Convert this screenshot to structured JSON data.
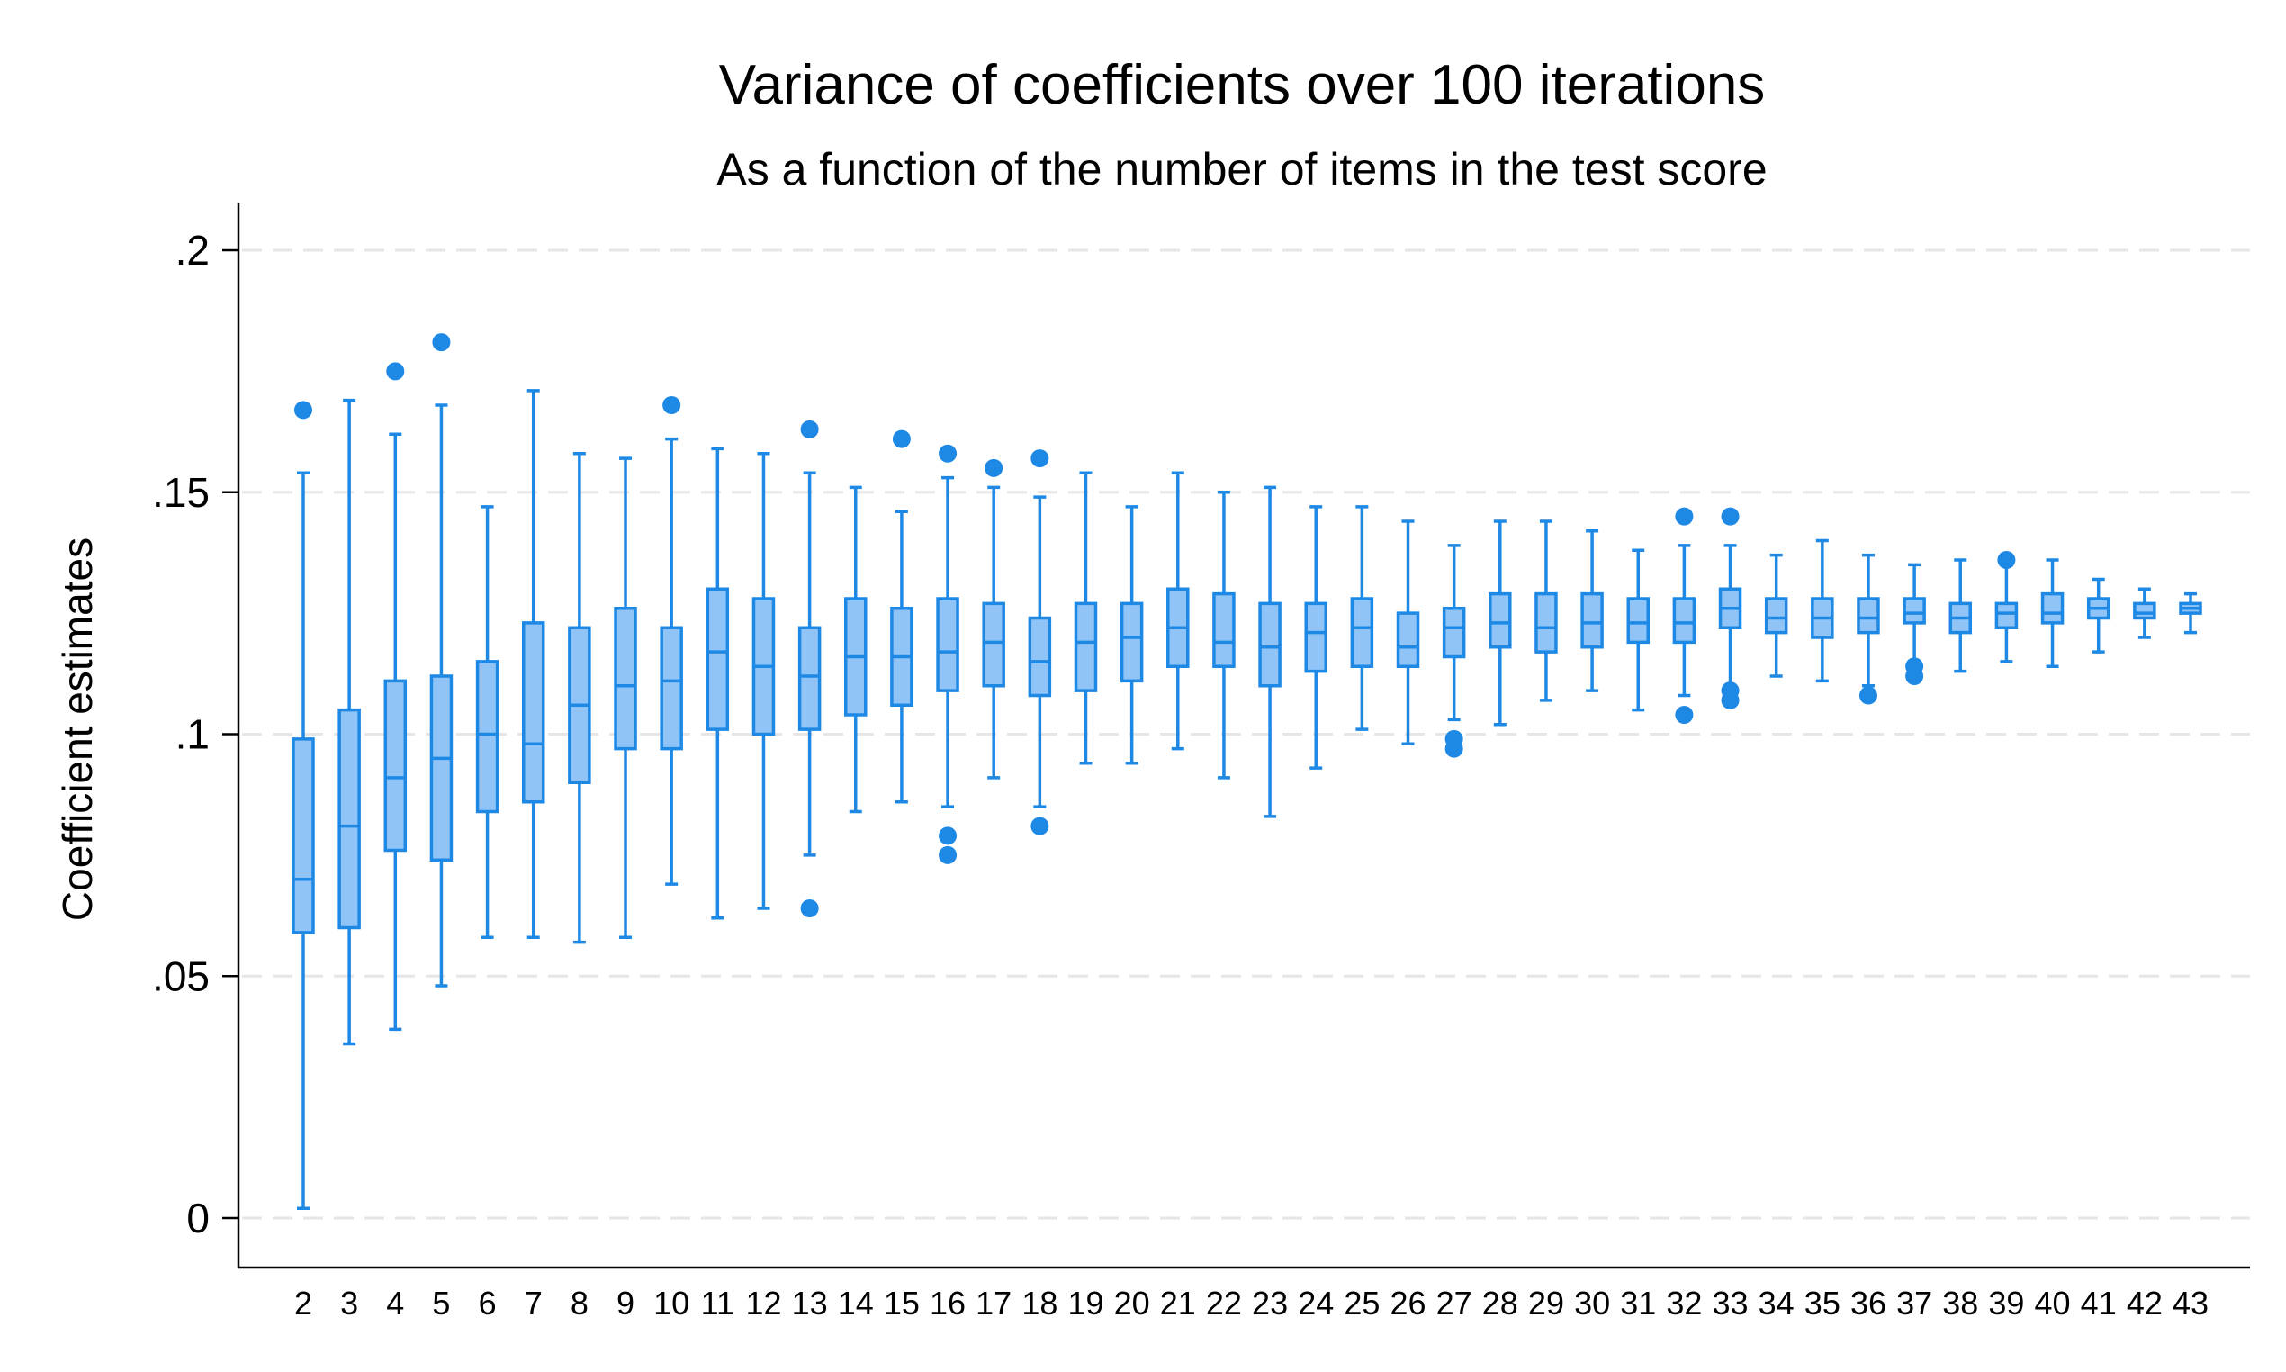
{
  "chart_data": {
    "type": "boxplot",
    "title": "Variance of coefficients over 100 iterations",
    "subtitle": "As a function of the number of items in the test score",
    "ylabel": "Coefficient estimates",
    "xlabel": "",
    "ylim": [
      0,
      0.2
    ],
    "yticks": [
      0,
      0.05,
      0.1,
      0.15,
      0.2
    ],
    "ytick_labels": [
      "0",
      ".05",
      ".1",
      ".15",
      ".2"
    ],
    "grid": "horizontal dashed",
    "color": "#1e88e5",
    "box_fill": "#90c4f7",
    "categories": [
      "2",
      "3",
      "4",
      "5",
      "6",
      "7",
      "8",
      "9",
      "10",
      "11",
      "12",
      "13",
      "14",
      "15",
      "16",
      "17",
      "18",
      "19",
      "20",
      "21",
      "22",
      "23",
      "24",
      "25",
      "26",
      "27",
      "28",
      "29",
      "30",
      "31",
      "32",
      "33",
      "34",
      "35",
      "36",
      "37",
      "38",
      "39",
      "40",
      "41",
      "42",
      "43"
    ],
    "boxes": [
      {
        "min": 0.002,
        "q1": 0.059,
        "median": 0.07,
        "q3": 0.099,
        "max": 0.154,
        "outliers": [
          0.167
        ]
      },
      {
        "min": 0.036,
        "q1": 0.06,
        "median": 0.081,
        "q3": 0.105,
        "max": 0.169,
        "outliers": []
      },
      {
        "min": 0.039,
        "q1": 0.076,
        "median": 0.091,
        "q3": 0.111,
        "max": 0.162,
        "outliers": [
          0.175
        ]
      },
      {
        "min": 0.048,
        "q1": 0.074,
        "median": 0.095,
        "q3": 0.112,
        "max": 0.168,
        "outliers": [
          0.181
        ]
      },
      {
        "min": 0.058,
        "q1": 0.084,
        "median": 0.1,
        "q3": 0.115,
        "max": 0.147,
        "outliers": []
      },
      {
        "min": 0.058,
        "q1": 0.086,
        "median": 0.098,
        "q3": 0.123,
        "max": 0.171,
        "outliers": []
      },
      {
        "min": 0.057,
        "q1": 0.09,
        "median": 0.106,
        "q3": 0.122,
        "max": 0.158,
        "outliers": []
      },
      {
        "min": 0.058,
        "q1": 0.097,
        "median": 0.11,
        "q3": 0.126,
        "max": 0.157,
        "outliers": []
      },
      {
        "min": 0.069,
        "q1": 0.097,
        "median": 0.111,
        "q3": 0.122,
        "max": 0.161,
        "outliers": [
          0.168
        ]
      },
      {
        "min": 0.062,
        "q1": 0.101,
        "median": 0.117,
        "q3": 0.13,
        "max": 0.159,
        "outliers": []
      },
      {
        "min": 0.064,
        "q1": 0.1,
        "median": 0.114,
        "q3": 0.128,
        "max": 0.158,
        "outliers": []
      },
      {
        "min": 0.075,
        "q1": 0.101,
        "median": 0.112,
        "q3": 0.122,
        "max": 0.154,
        "outliers": [
          0.163,
          0.064
        ]
      },
      {
        "min": 0.084,
        "q1": 0.104,
        "median": 0.116,
        "q3": 0.128,
        "max": 0.151,
        "outliers": []
      },
      {
        "min": 0.086,
        "q1": 0.106,
        "median": 0.116,
        "q3": 0.126,
        "max": 0.146,
        "outliers": [
          0.161
        ]
      },
      {
        "min": 0.085,
        "q1": 0.109,
        "median": 0.117,
        "q3": 0.128,
        "max": 0.153,
        "outliers": [
          0.158,
          0.079,
          0.075
        ]
      },
      {
        "min": 0.091,
        "q1": 0.11,
        "median": 0.119,
        "q3": 0.127,
        "max": 0.151,
        "outliers": [
          0.155
        ]
      },
      {
        "min": 0.085,
        "q1": 0.108,
        "median": 0.115,
        "q3": 0.124,
        "max": 0.149,
        "outliers": [
          0.157,
          0.081
        ]
      },
      {
        "min": 0.094,
        "q1": 0.109,
        "median": 0.119,
        "q3": 0.127,
        "max": 0.154,
        "outliers": []
      },
      {
        "min": 0.094,
        "q1": 0.111,
        "median": 0.12,
        "q3": 0.127,
        "max": 0.147,
        "outliers": []
      },
      {
        "min": 0.097,
        "q1": 0.114,
        "median": 0.122,
        "q3": 0.13,
        "max": 0.154,
        "outliers": []
      },
      {
        "min": 0.091,
        "q1": 0.114,
        "median": 0.119,
        "q3": 0.129,
        "max": 0.15,
        "outliers": []
      },
      {
        "min": 0.083,
        "q1": 0.11,
        "median": 0.118,
        "q3": 0.127,
        "max": 0.151,
        "outliers": []
      },
      {
        "min": 0.093,
        "q1": 0.113,
        "median": 0.121,
        "q3": 0.127,
        "max": 0.147,
        "outliers": []
      },
      {
        "min": 0.101,
        "q1": 0.114,
        "median": 0.122,
        "q3": 0.128,
        "max": 0.147,
        "outliers": []
      },
      {
        "min": 0.098,
        "q1": 0.114,
        "median": 0.118,
        "q3": 0.125,
        "max": 0.144,
        "outliers": []
      },
      {
        "min": 0.103,
        "q1": 0.116,
        "median": 0.122,
        "q3": 0.126,
        "max": 0.139,
        "outliers": [
          0.099,
          0.097
        ]
      },
      {
        "min": 0.102,
        "q1": 0.118,
        "median": 0.123,
        "q3": 0.129,
        "max": 0.144,
        "outliers": []
      },
      {
        "min": 0.107,
        "q1": 0.117,
        "median": 0.122,
        "q3": 0.129,
        "max": 0.144,
        "outliers": []
      },
      {
        "min": 0.109,
        "q1": 0.118,
        "median": 0.123,
        "q3": 0.129,
        "max": 0.142,
        "outliers": []
      },
      {
        "min": 0.105,
        "q1": 0.119,
        "median": 0.123,
        "q3": 0.128,
        "max": 0.138,
        "outliers": []
      },
      {
        "min": 0.108,
        "q1": 0.119,
        "median": 0.123,
        "q3": 0.128,
        "max": 0.139,
        "outliers": [
          0.145,
          0.104
        ]
      },
      {
        "min": 0.11,
        "q1": 0.122,
        "median": 0.126,
        "q3": 0.13,
        "max": 0.139,
        "outliers": [
          0.145,
          0.109,
          0.107
        ]
      },
      {
        "min": 0.112,
        "q1": 0.121,
        "median": 0.124,
        "q3": 0.128,
        "max": 0.137,
        "outliers": []
      },
      {
        "min": 0.111,
        "q1": 0.12,
        "median": 0.124,
        "q3": 0.128,
        "max": 0.14,
        "outliers": []
      },
      {
        "min": 0.11,
        "q1": 0.121,
        "median": 0.124,
        "q3": 0.128,
        "max": 0.137,
        "outliers": [
          0.108
        ]
      },
      {
        "min": 0.115,
        "q1": 0.123,
        "median": 0.125,
        "q3": 0.128,
        "max": 0.135,
        "outliers": [
          0.114,
          0.112
        ]
      },
      {
        "min": 0.113,
        "q1": 0.121,
        "median": 0.124,
        "q3": 0.127,
        "max": 0.136,
        "outliers": []
      },
      {
        "min": 0.115,
        "q1": 0.122,
        "median": 0.125,
        "q3": 0.127,
        "max": 0.135,
        "outliers": [
          0.136
        ]
      },
      {
        "min": 0.114,
        "q1": 0.123,
        "median": 0.125,
        "q3": 0.129,
        "max": 0.136,
        "outliers": []
      },
      {
        "min": 0.117,
        "q1": 0.124,
        "median": 0.126,
        "q3": 0.128,
        "max": 0.132,
        "outliers": []
      },
      {
        "min": 0.12,
        "q1": 0.124,
        "median": 0.125,
        "q3": 0.127,
        "max": 0.13,
        "outliers": []
      },
      {
        "min": 0.121,
        "q1": 0.125,
        "median": 0.126,
        "q3": 0.127,
        "max": 0.129,
        "outliers": []
      }
    ]
  }
}
